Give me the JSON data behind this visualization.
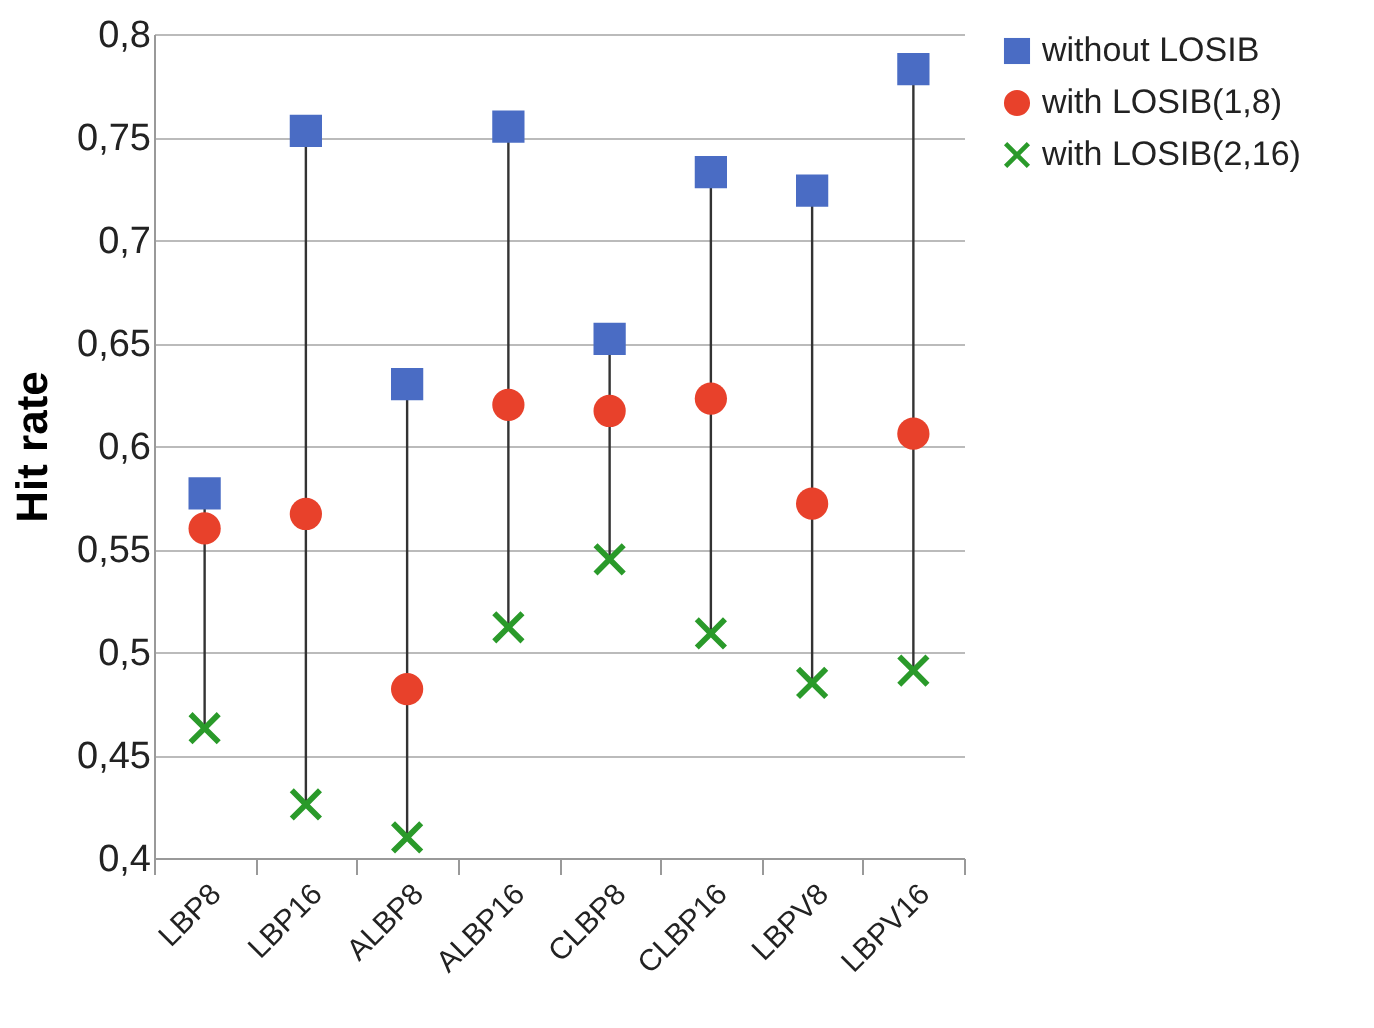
{
  "chart_data": {
    "type": "scatter",
    "ylabel": "Hit rate",
    "categories": [
      "LBP8",
      "LBP16",
      "ALBP8",
      "ALBP16",
      "CLBP8",
      "CLBP16",
      "LBPV8",
      "LBPV16"
    ],
    "series": [
      {
        "name": "without LOSIB",
        "color": "#4a6cc4",
        "marker": "square",
        "values": [
          0.577,
          0.753,
          0.63,
          0.755,
          0.652,
          0.733,
          0.724,
          0.783
        ]
      },
      {
        "name": "with LOSIB(1,8)",
        "color": "#e8412b",
        "marker": "circle",
        "values": [
          0.56,
          0.567,
          0.482,
          0.62,
          0.617,
          0.623,
          0.572,
          0.606
        ]
      },
      {
        "name": "with LOSIB(2,16)",
        "color": "#2a9a2a",
        "marker": "cross",
        "values": [
          0.463,
          0.426,
          0.41,
          0.512,
          0.545,
          0.509,
          0.485,
          0.491
        ]
      }
    ],
    "ylim": [
      0.4,
      0.8
    ],
    "yticks": [
      {
        "value": 0.4,
        "label": "0,4"
      },
      {
        "value": 0.45,
        "label": "0,45"
      },
      {
        "value": 0.5,
        "label": "0,5"
      },
      {
        "value": 0.55,
        "label": "0,55"
      },
      {
        "value": 0.6,
        "label": "0,6"
      },
      {
        "value": 0.65,
        "label": "0,65"
      },
      {
        "value": 0.7,
        "label": "0,7"
      },
      {
        "value": 0.75,
        "label": "0,75"
      },
      {
        "value": 0.8,
        "label": "0,8"
      }
    ],
    "grid": "y",
    "legend": "right"
  }
}
